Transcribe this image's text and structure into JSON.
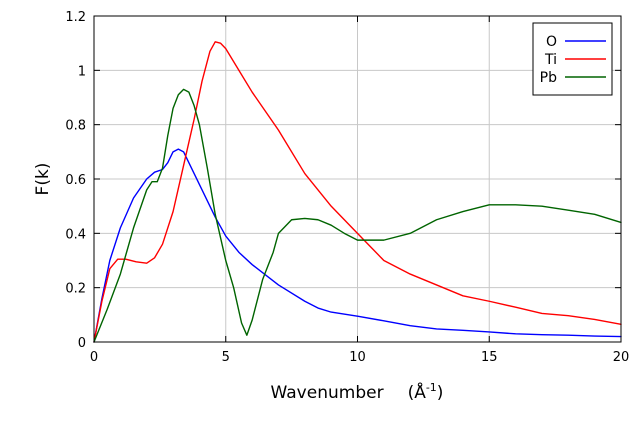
{
  "chart_data": {
    "type": "line",
    "title": "",
    "xlabel": "Wavenumber",
    "xlabel_unit": "(Å",
    "xlabel_unit_exp": "-1",
    "xlabel_unit_close": ")",
    "ylabel": "F(k)",
    "xlim": [
      0,
      20
    ],
    "ylim": [
      0,
      1.2
    ],
    "grid": true,
    "legend_position": "top-right",
    "x_ticks": [
      0,
      5,
      10,
      15,
      20
    ],
    "x_tick_labels": [
      "0",
      "5",
      "10",
      "15",
      "20"
    ],
    "y_ticks": [
      0,
      0.2,
      0.4,
      0.6,
      0.8,
      1,
      1.2
    ],
    "y_tick_labels": [
      "0",
      "0.2",
      "0.4",
      "0.6",
      "0.8",
      "1",
      "1.2"
    ],
    "series": [
      {
        "name": "O",
        "color": "#0000ff",
        "points": [
          [
            0,
            0
          ],
          [
            0.3,
            0.16
          ],
          [
            0.6,
            0.3
          ],
          [
            1,
            0.42
          ],
          [
            1.5,
            0.53
          ],
          [
            2,
            0.6
          ],
          [
            2.3,
            0.625
          ],
          [
            2.6,
            0.635
          ],
          [
            2.8,
            0.66
          ],
          [
            3,
            0.7
          ],
          [
            3.2,
            0.71
          ],
          [
            3.4,
            0.7
          ],
          [
            3.8,
            0.62
          ],
          [
            4.2,
            0.54
          ],
          [
            4.6,
            0.46
          ],
          [
            5,
            0.39
          ],
          [
            5.5,
            0.33
          ],
          [
            6,
            0.285
          ],
          [
            7,
            0.21
          ],
          [
            8,
            0.15
          ],
          [
            8.5,
            0.125
          ],
          [
            9,
            0.11
          ],
          [
            10,
            0.095
          ],
          [
            11,
            0.078
          ],
          [
            12,
            0.06
          ],
          [
            13,
            0.048
          ],
          [
            14,
            0.043
          ],
          [
            15,
            0.037
          ],
          [
            16,
            0.03
          ],
          [
            17,
            0.027
          ],
          [
            18,
            0.025
          ],
          [
            19,
            0.022
          ],
          [
            20,
            0.02
          ]
        ]
      },
      {
        "name": "Ti",
        "color": "#ff0000",
        "points": [
          [
            0,
            0
          ],
          [
            0.3,
            0.15
          ],
          [
            0.6,
            0.27
          ],
          [
            0.9,
            0.305
          ],
          [
            1.2,
            0.305
          ],
          [
            1.6,
            0.295
          ],
          [
            2,
            0.29
          ],
          [
            2.3,
            0.31
          ],
          [
            2.6,
            0.36
          ],
          [
            3,
            0.48
          ],
          [
            3.4,
            0.65
          ],
          [
            3.8,
            0.82
          ],
          [
            4.1,
            0.96
          ],
          [
            4.4,
            1.07
          ],
          [
            4.6,
            1.105
          ],
          [
            4.8,
            1.1
          ],
          [
            5,
            1.08
          ],
          [
            5.5,
            1.0
          ],
          [
            6,
            0.92
          ],
          [
            7,
            0.78
          ],
          [
            8,
            0.62
          ],
          [
            9,
            0.5
          ],
          [
            10,
            0.4
          ],
          [
            11,
            0.3
          ],
          [
            12,
            0.25
          ],
          [
            13,
            0.21
          ],
          [
            14,
            0.17
          ],
          [
            15,
            0.15
          ],
          [
            16,
            0.128
          ],
          [
            17,
            0.105
          ],
          [
            18,
            0.097
          ],
          [
            19,
            0.083
          ],
          [
            20,
            0.065
          ]
        ]
      },
      {
        "name": "Pb",
        "color": "#006400",
        "points": [
          [
            0,
            0
          ],
          [
            0.5,
            0.12
          ],
          [
            1,
            0.25
          ],
          [
            1.5,
            0.42
          ],
          [
            2,
            0.56
          ],
          [
            2.2,
            0.59
          ],
          [
            2.4,
            0.59
          ],
          [
            2.6,
            0.64
          ],
          [
            2.8,
            0.76
          ],
          [
            3,
            0.86
          ],
          [
            3.2,
            0.91
          ],
          [
            3.4,
            0.93
          ],
          [
            3.6,
            0.92
          ],
          [
            3.8,
            0.87
          ],
          [
            4,
            0.8
          ],
          [
            4.3,
            0.64
          ],
          [
            4.6,
            0.47
          ],
          [
            5,
            0.3
          ],
          [
            5.3,
            0.2
          ],
          [
            5.6,
            0.07
          ],
          [
            5.8,
            0.025
          ],
          [
            6,
            0.08
          ],
          [
            6.4,
            0.23
          ],
          [
            6.8,
            0.33
          ],
          [
            7,
            0.4
          ],
          [
            7.5,
            0.45
          ],
          [
            8,
            0.455
          ],
          [
            8.5,
            0.45
          ],
          [
            9,
            0.43
          ],
          [
            9.5,
            0.4
          ],
          [
            10,
            0.375
          ],
          [
            11,
            0.375
          ],
          [
            12,
            0.4
          ],
          [
            13,
            0.45
          ],
          [
            14,
            0.48
          ],
          [
            15,
            0.505
          ],
          [
            16,
            0.505
          ],
          [
            17,
            0.5
          ],
          [
            18,
            0.485
          ],
          [
            19,
            0.47
          ],
          [
            20,
            0.44
          ]
        ]
      }
    ]
  }
}
